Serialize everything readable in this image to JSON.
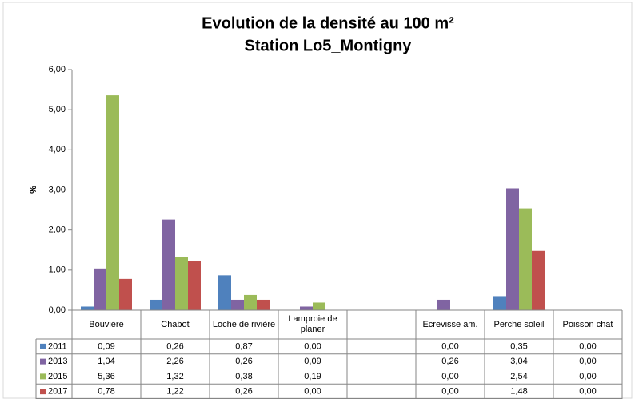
{
  "chart_data": {
    "type": "bar",
    "title": "Evolution de la densité au 100 m²",
    "subtitle": "Station Lo5_Montigny",
    "y_label": "%",
    "categories": [
      "Bouvière",
      "Chabot",
      "Loche de rivière",
      "Lamproie de planer",
      null,
      "Ecrevisse am.",
      "Perche soleil",
      "Poisson chat"
    ],
    "series": [
      {
        "name": "2011",
        "color": "#4f81bd",
        "values": [
          0.09,
          0.26,
          0.87,
          0.0,
          null,
          0.0,
          0.35,
          0.0
        ],
        "value_labels": [
          "0,09",
          "0,26",
          "0,87",
          "0,00",
          null,
          "0,00",
          "0,35",
          "0,00"
        ]
      },
      {
        "name": "2013",
        "color": "#8064a2",
        "values": [
          1.04,
          2.26,
          0.26,
          0.09,
          null,
          0.26,
          3.04,
          0.0
        ],
        "value_labels": [
          "1,04",
          "2,26",
          "0,26",
          "0,09",
          null,
          "0,26",
          "3,04",
          "0,00"
        ]
      },
      {
        "name": "2015",
        "color": "#9bbb59",
        "values": [
          5.36,
          1.32,
          0.38,
          0.19,
          null,
          0.0,
          2.54,
          0.0
        ],
        "value_labels": [
          "5,36",
          "1,32",
          "0,38",
          "0,19",
          null,
          "0,00",
          "2,54",
          "0,00"
        ]
      },
      {
        "name": "2017",
        "color": "#c0504d",
        "values": [
          0.78,
          1.22,
          0.26,
          0.0,
          null,
          0.0,
          1.48,
          0.0
        ],
        "value_labels": [
          "0,78",
          "1,22",
          "0,26",
          "0,00",
          null,
          "0,00",
          "1,48",
          "0,00"
        ]
      }
    ],
    "ylim": [
      0,
      6
    ],
    "yticks": [
      {
        "value": 0,
        "label": "0,00"
      },
      {
        "value": 1,
        "label": "1,00"
      },
      {
        "value": 2,
        "label": "2,00"
      },
      {
        "value": 3,
        "label": "3,00"
      },
      {
        "value": 4,
        "label": "4,00"
      },
      {
        "value": 5,
        "label": "5,00"
      },
      {
        "value": 6,
        "label": "6,00"
      }
    ],
    "grid": false,
    "data_table": true
  }
}
